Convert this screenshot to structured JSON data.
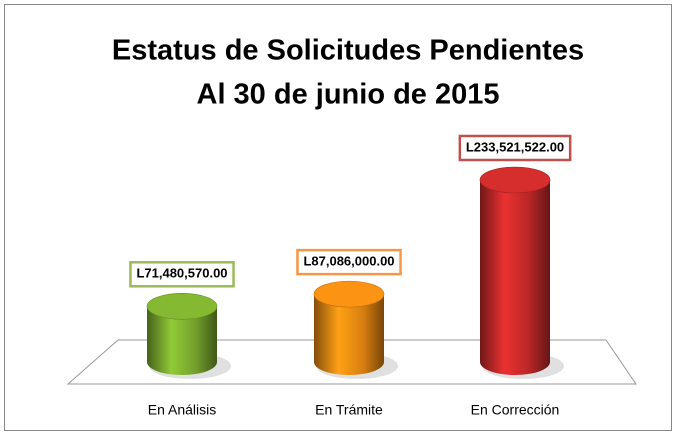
{
  "chart_data": {
    "type": "bar",
    "title": "Estatus de Solicitudes Pendientes",
    "subtitle": "Al 30 de junio de 2015",
    "categories": [
      "En Análisis",
      "En Trámite",
      "En Corrección"
    ],
    "values": [
      71480570,
      87086000,
      233521522
    ],
    "value_labels": [
      "L71,480,570.00",
      "L87,086,000.00",
      "L233,521,522.00"
    ],
    "colors": [
      "#7fb030",
      "#f08c12",
      "#cc2b2b"
    ],
    "label_borders": [
      "#9bbb59",
      "#f79646",
      "#c0504d"
    ]
  }
}
